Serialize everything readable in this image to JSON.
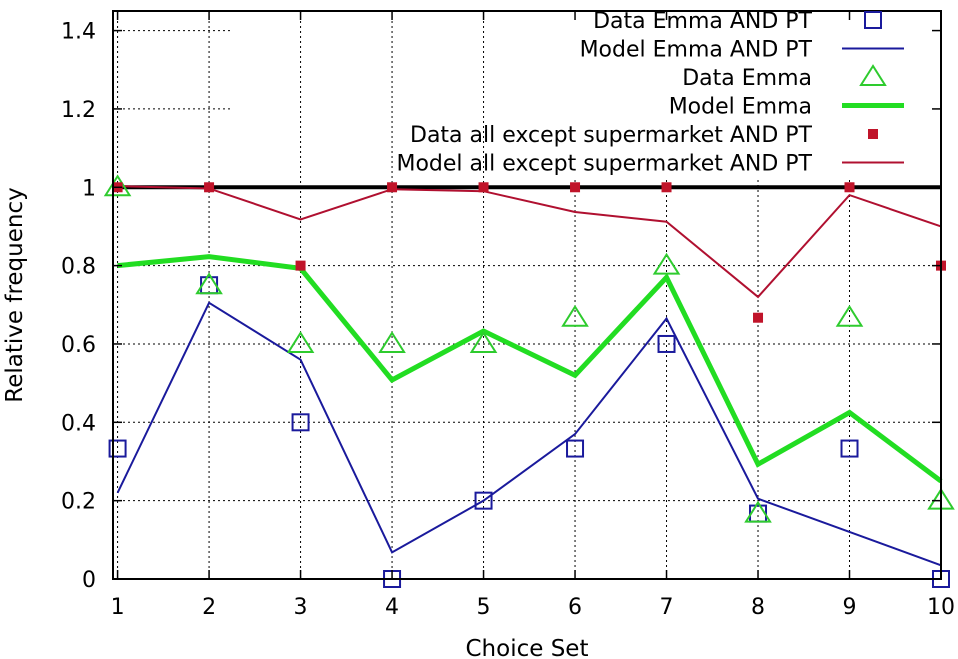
{
  "chart_data": {
    "type": "line",
    "title": "",
    "xlabel": "Choice Set",
    "ylabel": "Relative frequency",
    "xlim": [
      0.95,
      10
    ],
    "ylim": [
      0,
      1.45
    ],
    "xticks": [
      1,
      2,
      3,
      4,
      5,
      6,
      7,
      8,
      9,
      10
    ],
    "yticks": [
      0,
      0.2,
      0.4,
      0.6,
      0.8,
      1,
      1.2,
      1.4
    ],
    "ytick_labels": [
      "0",
      "0.2",
      "0.4",
      "0.6",
      "0.8",
      "1",
      "1.2",
      "1.4"
    ],
    "grid": true,
    "legend_position": "top-right",
    "reference_line": {
      "y": 1,
      "color": "#000000"
    },
    "x": [
      1,
      2,
      3,
      4,
      5,
      6,
      7,
      8,
      9,
      10
    ],
    "series": [
      {
        "name": "Data  Emma AND PT",
        "kind": "points",
        "marker": "square-open",
        "color": "#1a1a9c",
        "values": [
          0.333,
          0.75,
          0.4,
          0.0,
          0.2,
          0.333,
          0.6,
          0.167,
          0.333,
          0.0
        ]
      },
      {
        "name": "Model Emma AND PT",
        "kind": "line",
        "color": "#1a1a9c",
        "width": "thin",
        "values": [
          0.22,
          0.705,
          0.56,
          0.068,
          0.2,
          0.37,
          0.665,
          0.205,
          0.12,
          0.035
        ]
      },
      {
        "name": "Data  Emma",
        "kind": "points",
        "marker": "triangle-open",
        "color": "#2ecb2e",
        "values": [
          1.0,
          0.75,
          0.6,
          0.6,
          0.6,
          0.667,
          0.8,
          0.167,
          0.667,
          0.2
        ]
      },
      {
        "name": "Model Emma",
        "kind": "line",
        "color": "#22dd22",
        "width": "thick",
        "values": [
          0.8,
          0.823,
          0.793,
          0.508,
          0.633,
          0.52,
          0.77,
          0.293,
          0.425,
          0.25
        ]
      },
      {
        "name": "Data  all except supermarket AND PT",
        "kind": "points",
        "marker": "square-filled",
        "color": "#c0142a",
        "values": [
          1.0,
          1.0,
          0.8,
          1.0,
          1.0,
          1.0,
          1.0,
          0.667,
          1.0,
          0.8
        ]
      },
      {
        "name": "Model all except supermarket AND PT",
        "kind": "line",
        "color": "#b01030",
        "width": "thin",
        "values": [
          1.003,
          0.997,
          0.918,
          0.995,
          0.99,
          0.937,
          0.912,
          0.72,
          0.98,
          0.9
        ]
      }
    ]
  }
}
